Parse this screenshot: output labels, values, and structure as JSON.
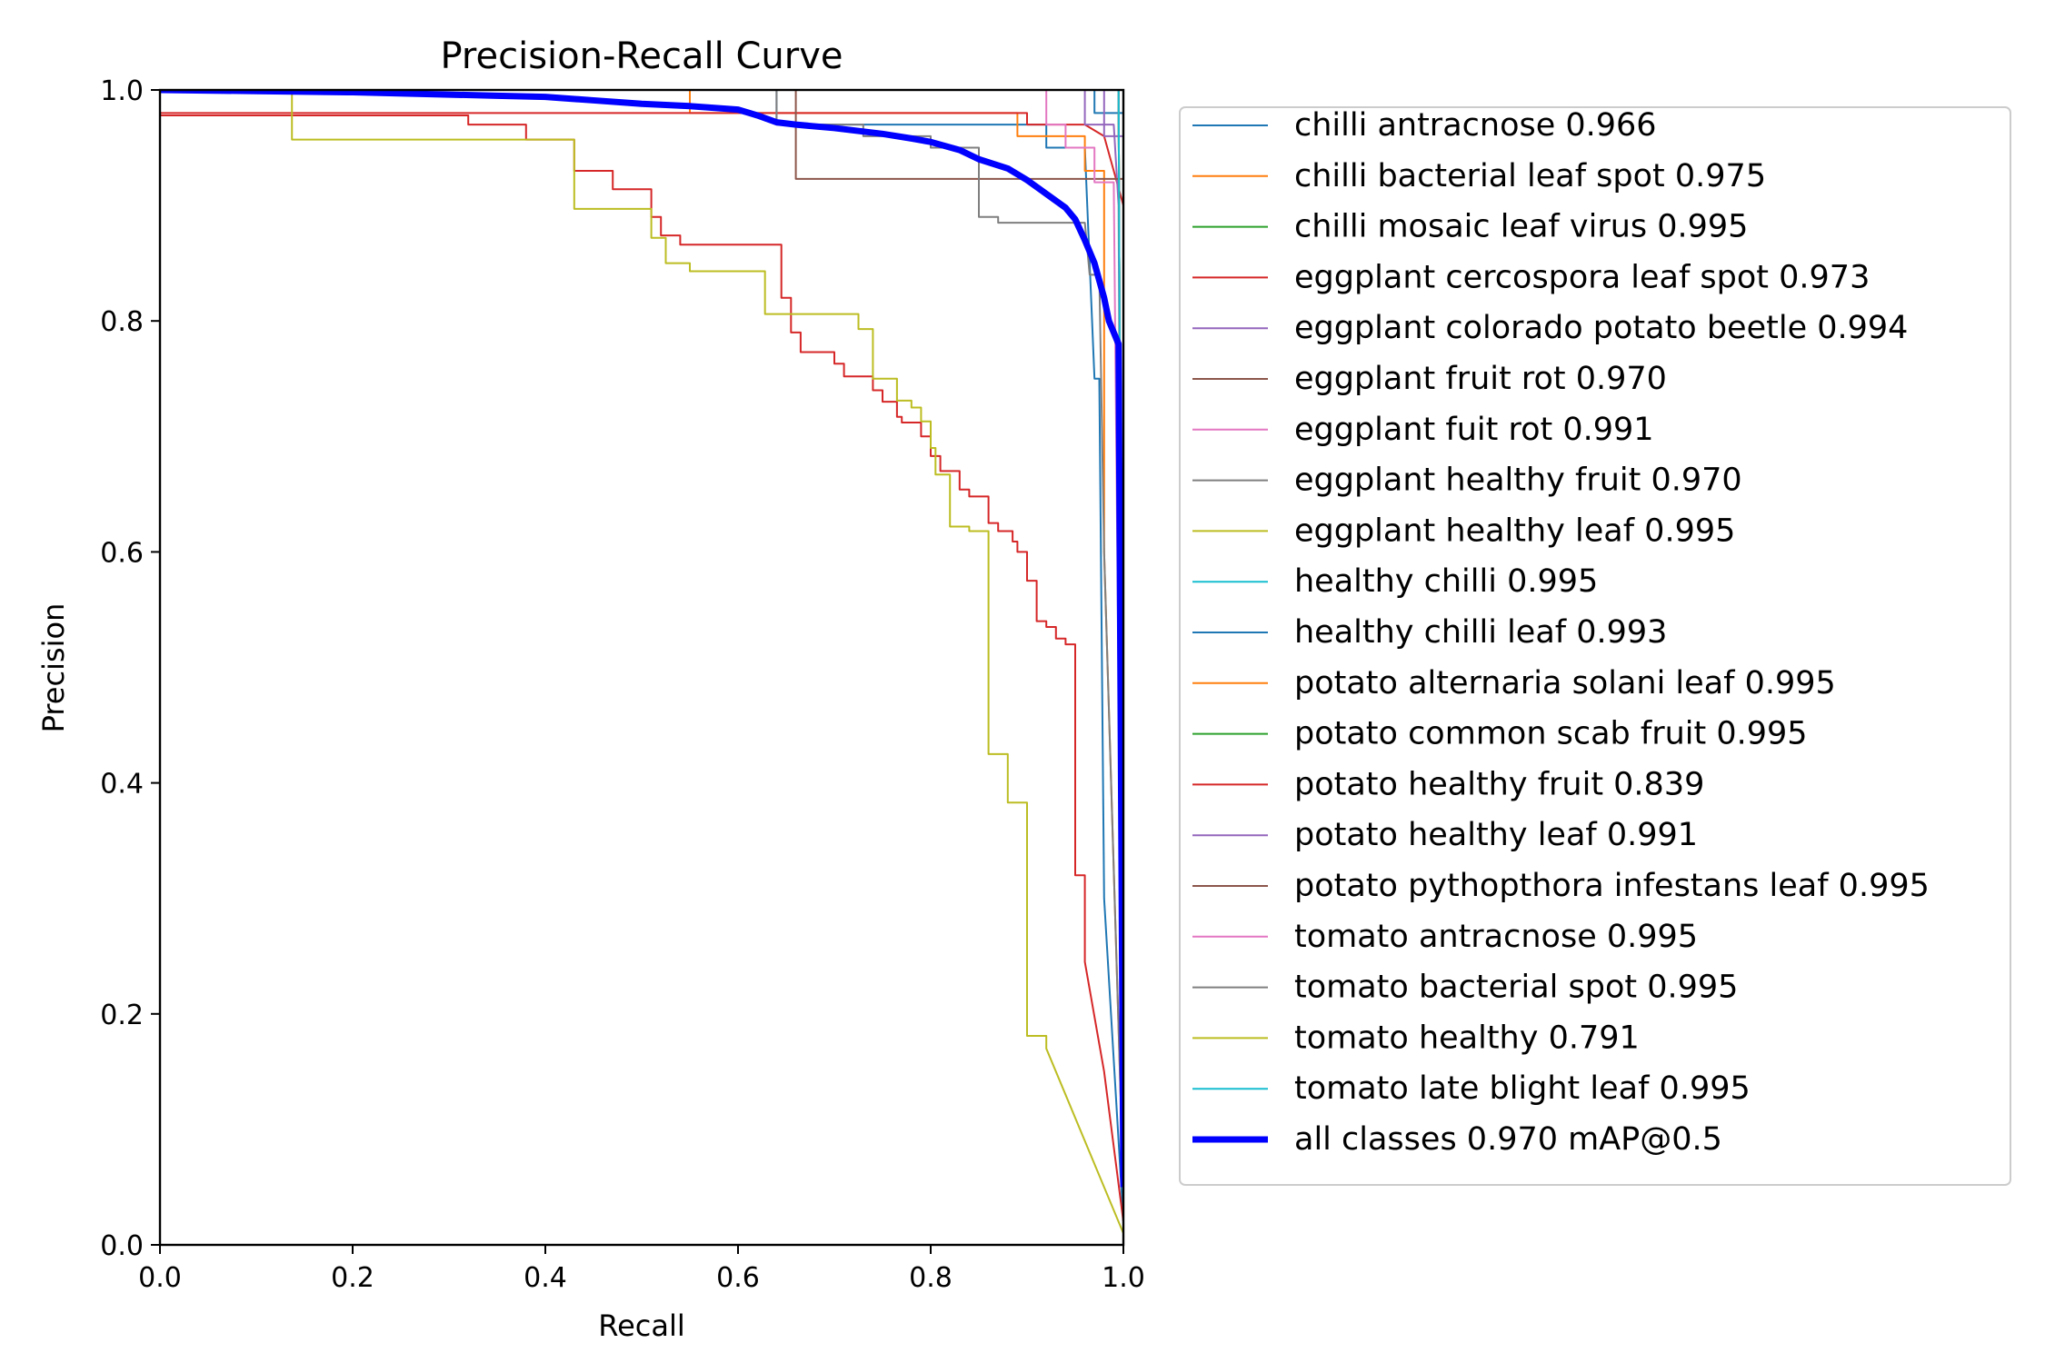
{
  "chart_data": {
    "type": "line",
    "title": "Precision-Recall Curve",
    "xlabel": "Recall",
    "ylabel": "Precision",
    "xlim": [
      0,
      1
    ],
    "ylim": [
      0,
      1
    ],
    "x_ticks": [
      "0.0",
      "0.2",
      "0.4",
      "0.6",
      "0.8",
      "1.0"
    ],
    "y_ticks": [
      "0.0",
      "0.2",
      "0.4",
      "0.6",
      "0.8",
      "1.0"
    ],
    "grid": false,
    "legend_position": "outside-right",
    "series": [
      {
        "name": "chilli antracnose 0.966",
        "color": "#1f77b4",
        "width": 2,
        "points": [
          [
            0,
            1
          ],
          [
            0.64,
            1
          ],
          [
            0.64,
            0.97
          ],
          [
            0.92,
            0.97
          ],
          [
            0.92,
            0.95
          ],
          [
            0.96,
            0.95
          ],
          [
            0.97,
            0.75
          ],
          [
            0.975,
            0.75
          ],
          [
            0.98,
            0.3
          ],
          [
            1.0,
            0.02
          ]
        ]
      },
      {
        "name": "chilli bacterial leaf spot 0.975",
        "color": "#ff7f0e",
        "width": 2,
        "points": [
          [
            0,
            1
          ],
          [
            0.55,
            1
          ],
          [
            0.55,
            0.98
          ],
          [
            0.89,
            0.98
          ],
          [
            0.89,
            0.96
          ],
          [
            0.96,
            0.96
          ],
          [
            0.96,
            0.93
          ],
          [
            0.98,
            0.93
          ],
          [
            0.98,
            0.6
          ],
          [
            1.0,
            0.05
          ]
        ]
      },
      {
        "name": "chilli mosaic leaf virus 0.995",
        "color": "#2ca02c",
        "width": 2,
        "points": [
          [
            0,
            1
          ],
          [
            0.995,
            1
          ],
          [
            1.0,
            0.05
          ]
        ]
      },
      {
        "name": "eggplant cercospora leaf spot 0.973",
        "color": "#d62728",
        "width": 2,
        "points": [
          [
            0,
            0.98
          ],
          [
            0.9,
            0.98
          ],
          [
            0.9,
            0.97
          ],
          [
            0.96,
            0.97
          ],
          [
            0.98,
            0.96
          ],
          [
            1.0,
            0.9
          ],
          [
            1.0,
            0.05
          ]
        ]
      },
      {
        "name": "eggplant colorado potato beetle 0.994",
        "color": "#9467bd",
        "width": 2,
        "points": [
          [
            0,
            1
          ],
          [
            0.96,
            1
          ],
          [
            0.96,
            0.97
          ],
          [
            0.99,
            0.97
          ],
          [
            0.995,
            0.9
          ],
          [
            1.0,
            0.05
          ]
        ]
      },
      {
        "name": "eggplant fruit rot 0.970",
        "color": "#8c564b",
        "width": 2,
        "points": [
          [
            0,
            1
          ],
          [
            0.66,
            1
          ],
          [
            0.66,
            0.923
          ],
          [
            1.0,
            0.923
          ],
          [
            1.0,
            0.05
          ]
        ]
      },
      {
        "name": "eggplant fuit rot 0.991",
        "color": "#e377c2",
        "width": 2,
        "points": [
          [
            0,
            1
          ],
          [
            0.92,
            1
          ],
          [
            0.92,
            0.97
          ],
          [
            0.94,
            0.97
          ],
          [
            0.94,
            0.95
          ],
          [
            0.97,
            0.95
          ],
          [
            0.97,
            0.92
          ],
          [
            0.99,
            0.92
          ],
          [
            1.0,
            0.05
          ]
        ]
      },
      {
        "name": "eggplant healthy fruit 0.970",
        "color": "#7f7f7f",
        "width": 2,
        "points": [
          [
            0,
            1
          ],
          [
            0.64,
            1
          ],
          [
            0.64,
            0.97
          ],
          [
            0.73,
            0.97
          ],
          [
            0.73,
            0.96
          ],
          [
            0.8,
            0.96
          ],
          [
            0.8,
            0.95
          ],
          [
            0.85,
            0.95
          ],
          [
            0.85,
            0.89
          ],
          [
            0.87,
            0.89
          ],
          [
            0.87,
            0.885
          ],
          [
            0.96,
            0.885
          ],
          [
            0.965,
            0.84
          ],
          [
            0.975,
            0.84
          ],
          [
            0.98,
            0.6
          ],
          [
            1.0,
            0.05
          ]
        ]
      },
      {
        "name": "eggplant healthy leaf 0.995",
        "color": "#bcbd22",
        "width": 2,
        "points": [
          [
            0,
            1
          ],
          [
            0.995,
            1
          ],
          [
            1.0,
            0.05
          ]
        ]
      },
      {
        "name": "healthy chilli 0.995",
        "color": "#17becf",
        "width": 2,
        "points": [
          [
            0,
            1
          ],
          [
            0.995,
            1
          ],
          [
            1.0,
            0.05
          ]
        ]
      },
      {
        "name": "healthy chilli leaf 0.993",
        "color": "#1f77b4",
        "width": 2,
        "points": [
          [
            0,
            1
          ],
          [
            0.97,
            1
          ],
          [
            0.97,
            0.98
          ],
          [
            1.0,
            0.98
          ],
          [
            1.0,
            0.05
          ]
        ]
      },
      {
        "name": "potato alternaria solani leaf 0.995",
        "color": "#ff7f0e",
        "width": 2,
        "points": [
          [
            0,
            1
          ],
          [
            0.995,
            1
          ],
          [
            1.0,
            0.05
          ]
        ]
      },
      {
        "name": "potato common scab fruit 0.995",
        "color": "#2ca02c",
        "width": 2,
        "points": [
          [
            0,
            1
          ],
          [
            0.995,
            1
          ],
          [
            1.0,
            0.05
          ]
        ]
      },
      {
        "name": "potato healthy fruit 0.839",
        "color": "#d62728",
        "width": 2,
        "points": [
          [
            0,
            0.978
          ],
          [
            0.32,
            0.978
          ],
          [
            0.32,
            0.97
          ],
          [
            0.38,
            0.97
          ],
          [
            0.38,
            0.957
          ],
          [
            0.43,
            0.957
          ],
          [
            0.43,
            0.93
          ],
          [
            0.47,
            0.93
          ],
          [
            0.47,
            0.914
          ],
          [
            0.51,
            0.914
          ],
          [
            0.51,
            0.89
          ],
          [
            0.52,
            0.89
          ],
          [
            0.52,
            0.874
          ],
          [
            0.54,
            0.874
          ],
          [
            0.54,
            0.866
          ],
          [
            0.645,
            0.866
          ],
          [
            0.645,
            0.82
          ],
          [
            0.655,
            0.82
          ],
          [
            0.655,
            0.79
          ],
          [
            0.665,
            0.79
          ],
          [
            0.665,
            0.773
          ],
          [
            0.7,
            0.773
          ],
          [
            0.7,
            0.763
          ],
          [
            0.71,
            0.763
          ],
          [
            0.71,
            0.752
          ],
          [
            0.74,
            0.752
          ],
          [
            0.74,
            0.74
          ],
          [
            0.75,
            0.74
          ],
          [
            0.75,
            0.73
          ],
          [
            0.765,
            0.73
          ],
          [
            0.765,
            0.717
          ],
          [
            0.77,
            0.717
          ],
          [
            0.77,
            0.712
          ],
          [
            0.79,
            0.712
          ],
          [
            0.79,
            0.7
          ],
          [
            0.8,
            0.7
          ],
          [
            0.8,
            0.683
          ],
          [
            0.81,
            0.683
          ],
          [
            0.81,
            0.67
          ],
          [
            0.83,
            0.67
          ],
          [
            0.83,
            0.654
          ],
          [
            0.84,
            0.654
          ],
          [
            0.84,
            0.648
          ],
          [
            0.86,
            0.648
          ],
          [
            0.86,
            0.625
          ],
          [
            0.87,
            0.625
          ],
          [
            0.87,
            0.618
          ],
          [
            0.885,
            0.618
          ],
          [
            0.885,
            0.609
          ],
          [
            0.89,
            0.609
          ],
          [
            0.89,
            0.6
          ],
          [
            0.9,
            0.6
          ],
          [
            0.9,
            0.575
          ],
          [
            0.91,
            0.575
          ],
          [
            0.91,
            0.54
          ],
          [
            0.92,
            0.54
          ],
          [
            0.92,
            0.535
          ],
          [
            0.93,
            0.535
          ],
          [
            0.93,
            0.525
          ],
          [
            0.94,
            0.525
          ],
          [
            0.94,
            0.52
          ],
          [
            0.95,
            0.52
          ],
          [
            0.95,
            0.32
          ],
          [
            0.96,
            0.32
          ],
          [
            0.96,
            0.245
          ],
          [
            0.98,
            0.15
          ],
          [
            1.0,
            0.02
          ]
        ]
      },
      {
        "name": "potato healthy leaf 0.991",
        "color": "#9467bd",
        "width": 2,
        "points": [
          [
            0,
            1
          ],
          [
            0.98,
            1
          ],
          [
            0.98,
            0.96
          ],
          [
            1.0,
            0.96
          ],
          [
            1.0,
            0.05
          ]
        ]
      },
      {
        "name": "potato pythopthora infestans leaf 0.995",
        "color": "#8c564b",
        "width": 2,
        "points": [
          [
            0,
            1
          ],
          [
            0.995,
            1
          ],
          [
            1.0,
            0.05
          ]
        ]
      },
      {
        "name": "tomato antracnose 0.995",
        "color": "#e377c2",
        "width": 2,
        "points": [
          [
            0,
            1
          ],
          [
            0.995,
            1
          ],
          [
            1.0,
            0.05
          ]
        ]
      },
      {
        "name": "tomato bacterial spot 0.995",
        "color": "#7f7f7f",
        "width": 2,
        "points": [
          [
            0,
            1
          ],
          [
            0.995,
            1
          ],
          [
            1.0,
            0.05
          ]
        ]
      },
      {
        "name": "tomato healthy 0.791",
        "color": "#bcbd22",
        "width": 2,
        "points": [
          [
            0,
            1
          ],
          [
            0.137,
            1
          ],
          [
            0.137,
            0.957
          ],
          [
            0.43,
            0.957
          ],
          [
            0.43,
            0.897
          ],
          [
            0.51,
            0.897
          ],
          [
            0.51,
            0.872
          ],
          [
            0.525,
            0.872
          ],
          [
            0.525,
            0.85
          ],
          [
            0.55,
            0.85
          ],
          [
            0.55,
            0.843
          ],
          [
            0.628,
            0.843
          ],
          [
            0.628,
            0.806
          ],
          [
            0.725,
            0.806
          ],
          [
            0.725,
            0.793
          ],
          [
            0.74,
            0.793
          ],
          [
            0.74,
            0.75
          ],
          [
            0.765,
            0.75
          ],
          [
            0.765,
            0.731
          ],
          [
            0.78,
            0.731
          ],
          [
            0.78,
            0.725
          ],
          [
            0.79,
            0.725
          ],
          [
            0.79,
            0.713
          ],
          [
            0.8,
            0.713
          ],
          [
            0.8,
            0.69
          ],
          [
            0.805,
            0.69
          ],
          [
            0.805,
            0.667
          ],
          [
            0.82,
            0.667
          ],
          [
            0.82,
            0.622
          ],
          [
            0.84,
            0.622
          ],
          [
            0.84,
            0.618
          ],
          [
            0.86,
            0.618
          ],
          [
            0.86,
            0.425
          ],
          [
            0.88,
            0.425
          ],
          [
            0.88,
            0.383
          ],
          [
            0.9,
            0.383
          ],
          [
            0.9,
            0.181
          ],
          [
            0.92,
            0.181
          ],
          [
            0.92,
            0.17
          ],
          [
            1.0,
            0.01
          ]
        ]
      },
      {
        "name": "tomato late blight leaf 0.995",
        "color": "#17becf",
        "width": 2,
        "points": [
          [
            0,
            1
          ],
          [
            0.995,
            1
          ],
          [
            1.0,
            0.05
          ]
        ]
      },
      {
        "name": "all classes 0.970 mAP@0.5",
        "color": "#0000ff",
        "width": 7,
        "points": [
          [
            0,
            1
          ],
          [
            0.1,
            0.999
          ],
          [
            0.2,
            0.998
          ],
          [
            0.3,
            0.996
          ],
          [
            0.35,
            0.995
          ],
          [
            0.4,
            0.994
          ],
          [
            0.45,
            0.991
          ],
          [
            0.5,
            0.988
          ],
          [
            0.55,
            0.986
          ],
          [
            0.6,
            0.983
          ],
          [
            0.62,
            0.978
          ],
          [
            0.64,
            0.972
          ],
          [
            0.66,
            0.97
          ],
          [
            0.7,
            0.967
          ],
          [
            0.75,
            0.962
          ],
          [
            0.78,
            0.958
          ],
          [
            0.8,
            0.955
          ],
          [
            0.83,
            0.948
          ],
          [
            0.85,
            0.94
          ],
          [
            0.88,
            0.932
          ],
          [
            0.9,
            0.922
          ],
          [
            0.92,
            0.91
          ],
          [
            0.94,
            0.898
          ],
          [
            0.95,
            0.888
          ],
          [
            0.96,
            0.87
          ],
          [
            0.965,
            0.86
          ],
          [
            0.97,
            0.85
          ],
          [
            0.98,
            0.82
          ],
          [
            0.985,
            0.8
          ],
          [
            0.995,
            0.78
          ],
          [
            1.0,
            0.05
          ]
        ]
      }
    ]
  }
}
